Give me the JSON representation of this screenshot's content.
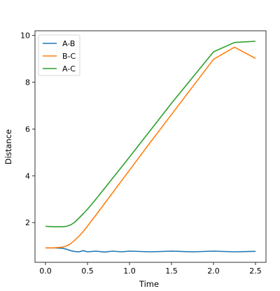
{
  "colors": {
    "A-B": "#1f77b4",
    "B-C": "#ff7f0e",
    "A-C": "#2ca02c"
  },
  "chart_data": {
    "type": "line",
    "title": "",
    "xlabel": "Time",
    "ylabel": "Distance",
    "xlim": [
      -0.125,
      2.625
    ],
    "ylim": [
      0.3,
      10.2
    ],
    "xticks": [
      0.0,
      0.5,
      1.0,
      1.5,
      2.0,
      2.5
    ],
    "xtick_labels": [
      "0.0",
      "0.5",
      "1.0",
      "1.5",
      "2.0",
      "2.5"
    ],
    "yticks": [
      2,
      4,
      6,
      8,
      10
    ],
    "ytick_labels": [
      "2",
      "4",
      "6",
      "8",
      "10"
    ],
    "grid": false,
    "legend_position": "upper-left",
    "x": [
      0.0,
      0.1,
      0.2,
      0.25,
      0.3,
      0.35,
      0.4,
      0.45,
      0.5,
      0.6,
      0.7,
      0.8,
      0.9,
      1.0,
      1.25,
      1.5,
      1.75,
      2.0,
      2.25,
      2.5
    ],
    "series": [
      {
        "name": "A-B",
        "values": [
          0.92,
          0.92,
          0.9,
          0.86,
          0.8,
          0.76,
          0.75,
          0.8,
          0.75,
          0.78,
          0.74,
          0.78,
          0.75,
          0.78,
          0.75,
          0.78,
          0.75,
          0.78,
          0.75,
          0.77
        ]
      },
      {
        "name": "B-C",
        "values": [
          0.92,
          0.92,
          0.95,
          1.0,
          1.1,
          1.25,
          1.42,
          1.62,
          1.85,
          2.32,
          2.8,
          3.28,
          3.76,
          4.24,
          5.44,
          6.62,
          7.8,
          8.98,
          9.5,
          9.02
        ]
      },
      {
        "name": "A-C",
        "values": [
          1.84,
          1.82,
          1.82,
          1.84,
          1.9,
          2.02,
          2.2,
          2.38,
          2.57,
          3.0,
          3.45,
          3.9,
          4.35,
          4.8,
          5.95,
          7.1,
          8.2,
          9.3,
          9.7,
          9.75
        ]
      }
    ]
  }
}
